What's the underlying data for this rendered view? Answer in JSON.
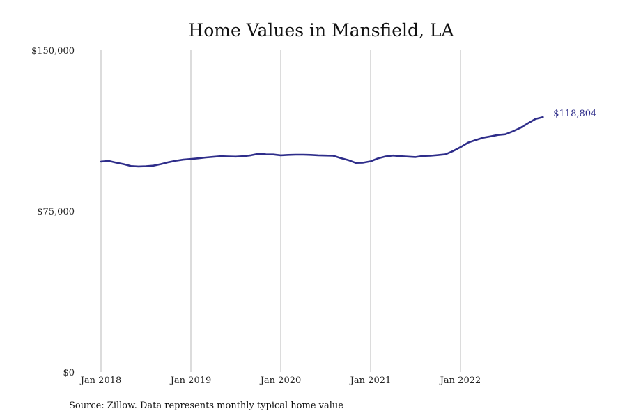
{
  "chart_data": {
    "type": "line",
    "title": "Home Values in Mansfield, LA",
    "xlabel": "",
    "ylabel": "",
    "ylim": [
      0,
      150000
    ],
    "y_ticks": [
      {
        "value": 0,
        "label": "$0"
      },
      {
        "value": 75000,
        "label": "$75,000"
      },
      {
        "value": 150000,
        "label": "$150,000"
      }
    ],
    "x_ticks": [
      {
        "value": "2018-01",
        "label": "Jan 2018"
      },
      {
        "value": "2019-01",
        "label": "Jan 2019"
      },
      {
        "value": "2020-01",
        "label": "Jan 2020"
      },
      {
        "value": "2021-01",
        "label": "Jan 2021"
      },
      {
        "value": "2022-01",
        "label": "Jan 2022"
      }
    ],
    "grid": {
      "vertical": true,
      "horizontal": false
    },
    "legend": "none",
    "series": [
      {
        "color": "#2e2d8a",
        "end_label": "$118,804",
        "x": [
          "2018-01",
          "2018-02",
          "2018-03",
          "2018-04",
          "2018-05",
          "2018-06",
          "2018-07",
          "2018-08",
          "2018-09",
          "2018-10",
          "2018-11",
          "2018-12",
          "2019-01",
          "2019-02",
          "2019-03",
          "2019-04",
          "2019-05",
          "2019-06",
          "2019-07",
          "2019-08",
          "2019-09",
          "2019-10",
          "2019-11",
          "2019-12",
          "2020-01",
          "2020-02",
          "2020-03",
          "2020-04",
          "2020-05",
          "2020-06",
          "2020-07",
          "2020-08",
          "2020-09",
          "2020-10",
          "2020-11",
          "2020-12",
          "2021-01",
          "2021-02",
          "2021-03",
          "2021-04",
          "2021-05",
          "2021-06",
          "2021-07",
          "2021-08",
          "2021-09",
          "2021-10",
          "2021-11",
          "2021-12",
          "2022-01",
          "2022-02",
          "2022-03",
          "2022-04",
          "2022-05",
          "2022-06",
          "2022-07",
          "2022-08",
          "2022-09",
          "2022-10",
          "2022-11",
          "2022-12"
        ],
        "values": [
          98100,
          98400,
          97600,
          96900,
          96000,
          95800,
          95900,
          96200,
          96900,
          97800,
          98500,
          99000,
          99300,
          99600,
          100000,
          100300,
          100600,
          100500,
          100400,
          100600,
          101000,
          101700,
          101500,
          101400,
          101000,
          101200,
          101300,
          101300,
          101200,
          101000,
          100900,
          100800,
          99700,
          98800,
          97500,
          97600,
          98200,
          99600,
          100500,
          100900,
          100600,
          100400,
          100200,
          100700,
          100800,
          101100,
          101500,
          103000,
          104800,
          106900,
          108100,
          109200,
          109800,
          110500,
          110800,
          112200,
          113800,
          115900,
          117900,
          118804
        ]
      }
    ]
  },
  "footer": {
    "source": "Source: Zillow. Data represents monthly typical home value"
  }
}
